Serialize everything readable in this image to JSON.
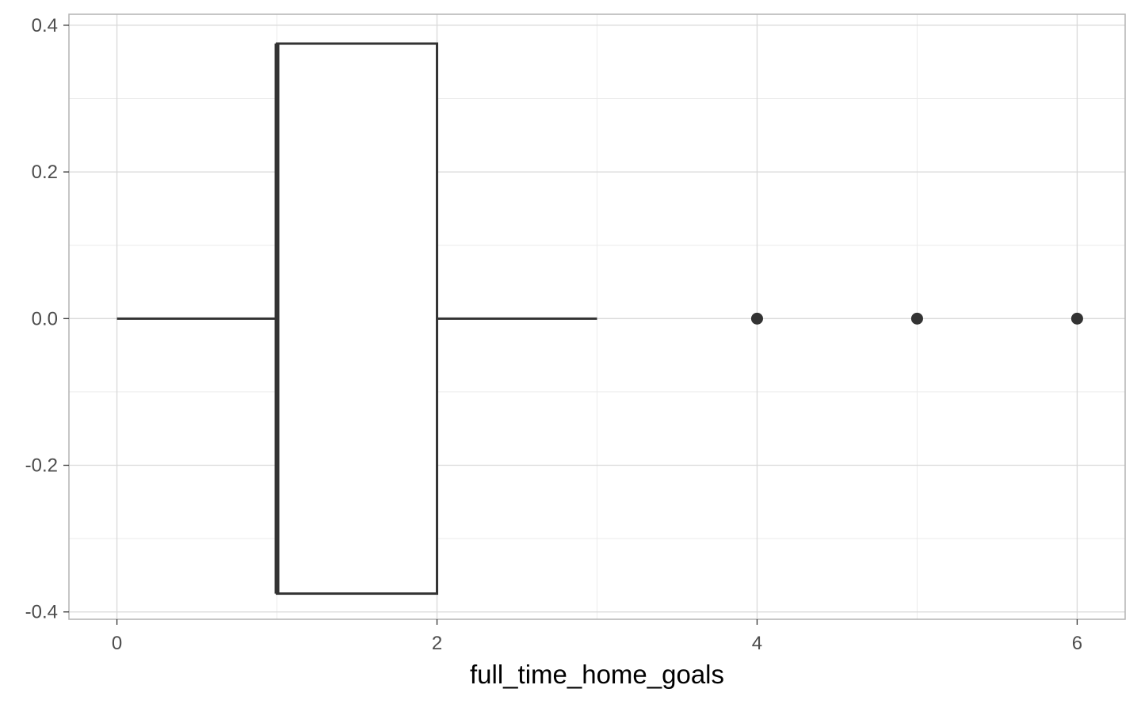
{
  "chart_data": {
    "type": "boxplot",
    "title": "",
    "xlabel": "full_time_home_goals",
    "ylabel": "",
    "x_ticks": [
      0,
      2,
      4,
      6
    ],
    "x_tick_labels": [
      "0",
      "2",
      "4",
      "6"
    ],
    "y_ticks": [
      0.4,
      0.2,
      0.0,
      -0.2,
      -0.4
    ],
    "y_tick_labels": [
      "0.4",
      "0.2",
      "0.0",
      "-0.2",
      "-0.4"
    ],
    "xlim": [
      -0.3,
      6.3
    ],
    "ylim": [
      -0.41,
      0.415
    ],
    "grid": true,
    "orientation": "horizontal",
    "box": {
      "whisker_low": 0,
      "q1": 1,
      "median": 1,
      "q3": 2,
      "whisker_high": 3,
      "y_center": 0,
      "half_height": 0.375
    },
    "outliers": [
      4,
      5,
      6
    ],
    "colors": {
      "box_stroke": "#333333",
      "box_fill": "#ffffff",
      "grid_major": "#d9d9d9",
      "grid_minor": "#ebebeb",
      "panel_border": "#b3b3b3",
      "tick_text": "#4d4d4d"
    }
  }
}
